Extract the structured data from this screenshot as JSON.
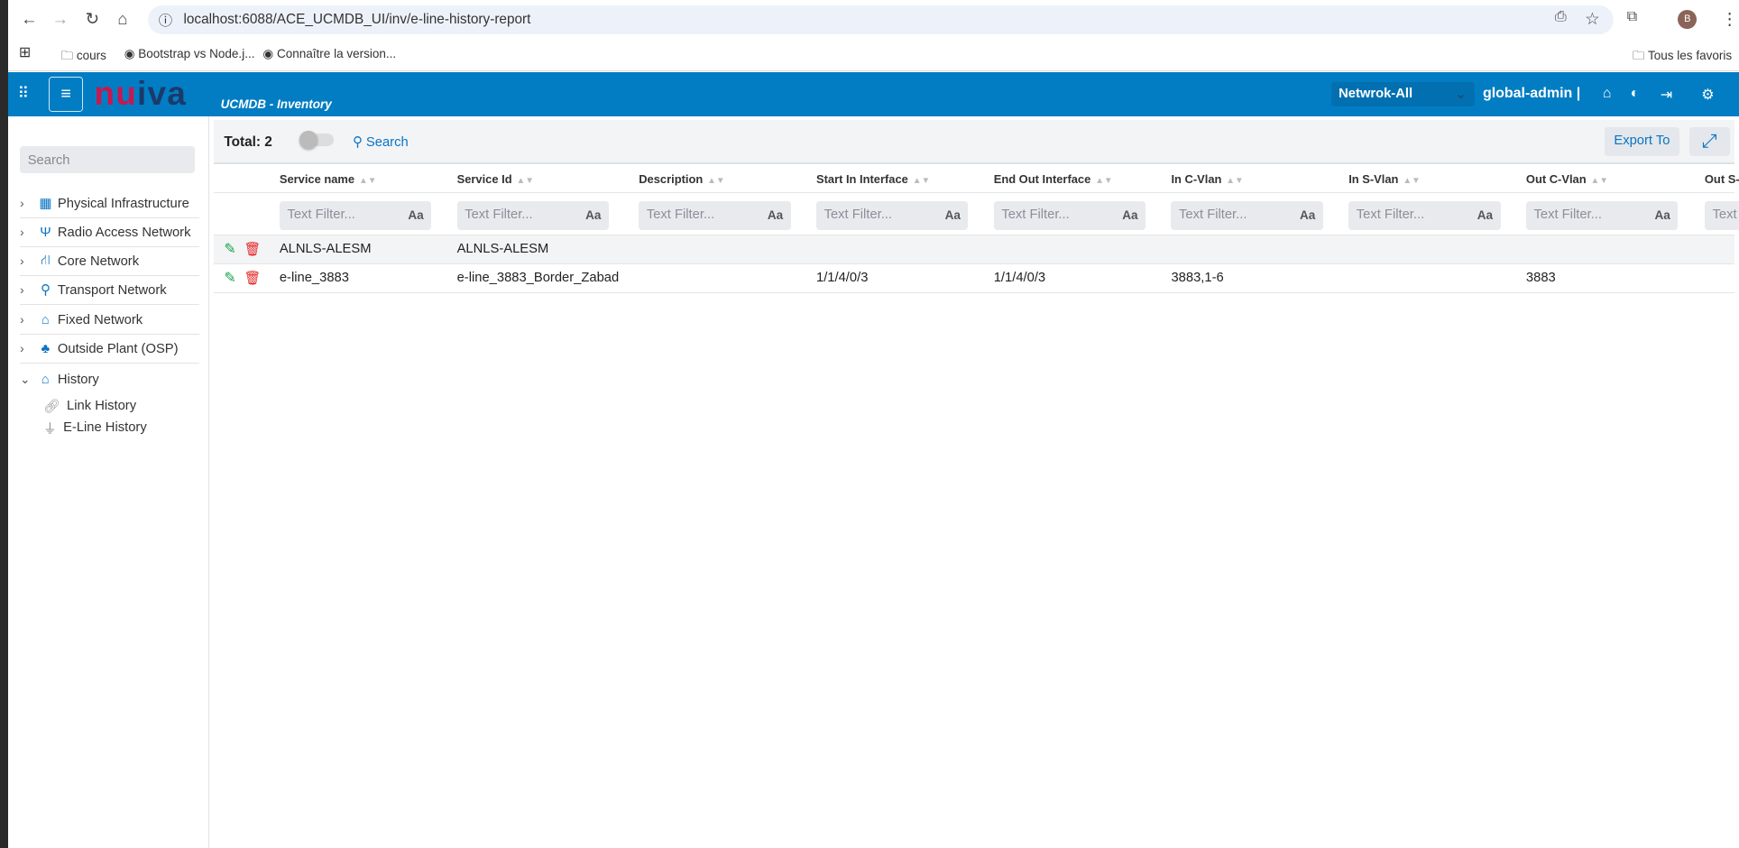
{
  "browser": {
    "url": "localhost:6088/ACE_UCMDB_UI/inv/e-line-history-report",
    "profile_initial": "B",
    "bookmarks": [
      "cours",
      "Bootstrap vs Node.j...",
      "Connaître la version..."
    ],
    "all_bookmarks": "Tous les favoris"
  },
  "header": {
    "app_subtitle": "UCMDB - Inventory",
    "logo": "nuiva",
    "network_select": "Netwrok-All",
    "user": "global-admin |",
    "brand_color": "#027dc3"
  },
  "sidebar": {
    "search_placeholder": "Search",
    "items": [
      {
        "label": "Physical Infrastructure",
        "icon": "building-icon"
      },
      {
        "label": "Radio Access Network",
        "icon": "antenna-icon"
      },
      {
        "label": "Core Network",
        "icon": "network-icon"
      },
      {
        "label": "Transport Network",
        "icon": "route-icon"
      },
      {
        "label": "Fixed Network",
        "icon": "home-icon"
      },
      {
        "label": "Outside Plant (OSP)",
        "icon": "tree-icon"
      },
      {
        "label": "History",
        "icon": "home-icon",
        "expanded": true
      }
    ],
    "sub_items": [
      {
        "label": "Link History",
        "icon": "link-icon"
      },
      {
        "label": "E-Line History",
        "icon": "plug-icon"
      }
    ]
  },
  "toolbar": {
    "total": "Total: 2",
    "search": "Search",
    "export": "Export To",
    "toggle_on": false
  },
  "table": {
    "columns": [
      "Service name",
      "Service Id",
      "Description",
      "Start In Interface",
      "End Out Interface",
      "In C-Vlan",
      "In S-Vlan",
      "Out C-Vlan",
      "Out S-"
    ],
    "filter_placeholder": "Text Filter...",
    "filter_case": "Aa",
    "rows": [
      [
        "ALNLS-ALESM",
        "ALNLS-ALESM",
        "",
        "",
        "",
        "",
        "",
        "",
        ""
      ],
      [
        "e-line_3883",
        "e-line_3883_Border_Zabad",
        "",
        "1/1/4/0/3",
        "1/1/4/0/3",
        "3883,1-6",
        "",
        "3883",
        ""
      ]
    ]
  }
}
